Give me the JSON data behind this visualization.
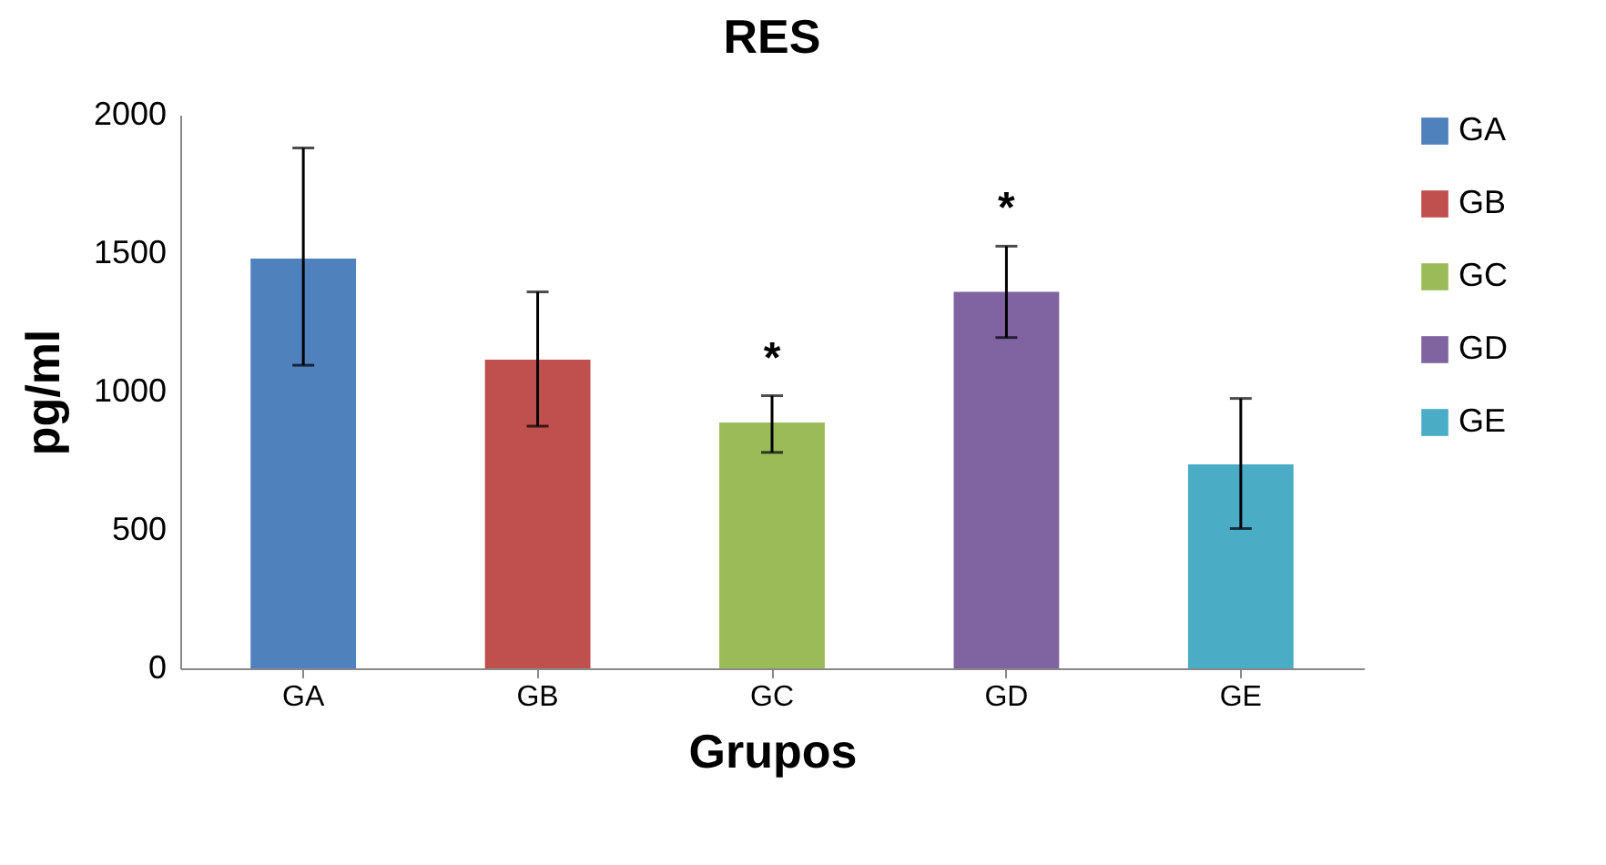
{
  "chart_data": {
    "type": "bar",
    "title": "RES",
    "xlabel": "Grupos",
    "ylabel": "pg/ml",
    "categories": [
      "GA",
      "GB",
      "GC",
      "GD",
      "GE"
    ],
    "stacked": true,
    "series": [
      {
        "name": "GA",
        "color": "#4f81bd",
        "values": [
          1480,
          null,
          null,
          null,
          null
        ],
        "errors": [
          [
            1095,
            1880
          ],
          null,
          null,
          null,
          null
        ]
      },
      {
        "name": "GB",
        "color": "#c0504d",
        "values": [
          null,
          1115,
          null,
          null,
          null
        ],
        "errors": [
          null,
          [
            875,
            1360
          ],
          null,
          null,
          null
        ]
      },
      {
        "name": "GC",
        "color": "#9bbb59",
        "values": [
          null,
          null,
          888,
          null,
          null
        ],
        "errors": [
          null,
          null,
          [
            780,
            985
          ],
          null,
          null
        ]
      },
      {
        "name": "GD",
        "color": "#8064a2",
        "values": [
          null,
          null,
          null,
          1360,
          null
        ],
        "errors": [
          null,
          null,
          null,
          [
            1195,
            1525
          ],
          null
        ]
      },
      {
        "name": "GE",
        "color": "#4bacc6",
        "values": [
          null,
          null,
          null,
          null,
          737
        ],
        "errors": [
          null,
          null,
          null,
          null,
          [
            505,
            975
          ]
        ]
      }
    ],
    "ylim": [
      0,
      2000
    ],
    "yticks": [
      0,
      500,
      1000,
      1500,
      2000
    ],
    "annotations": [
      {
        "text": "*",
        "x": "GC",
        "y": 985
      },
      {
        "text": "*",
        "x": "GD",
        "y": 1525
      }
    ],
    "legend": "right",
    "grid": false
  }
}
